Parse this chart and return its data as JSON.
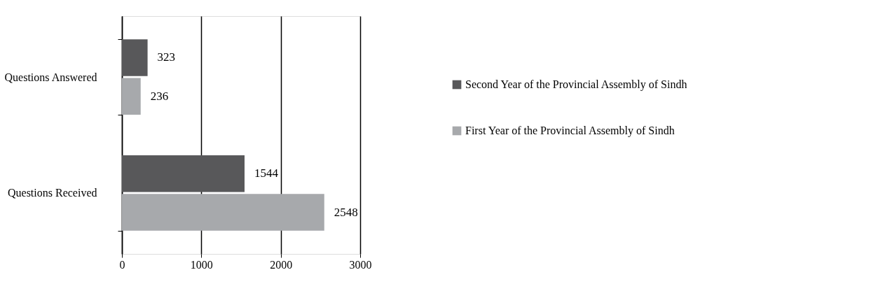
{
  "chart_data": {
    "type": "bar",
    "orientation": "horizontal",
    "categories": [
      "Questions Answered",
      "Questions Received"
    ],
    "series": [
      {
        "name": "Second Year of the Provincial Assembly of Sindh",
        "color": "#58585a",
        "values": [
          323,
          1544
        ]
      },
      {
        "name": "First Year of the Provincial Assembly of Sindh",
        "color": "#a7a9ac",
        "values": [
          236,
          2548
        ]
      }
    ],
    "xlim": [
      0,
      3000
    ],
    "xticks": [
      0,
      1000,
      2000,
      3000
    ],
    "grid": "x",
    "legend": "right",
    "data_labels": true
  }
}
